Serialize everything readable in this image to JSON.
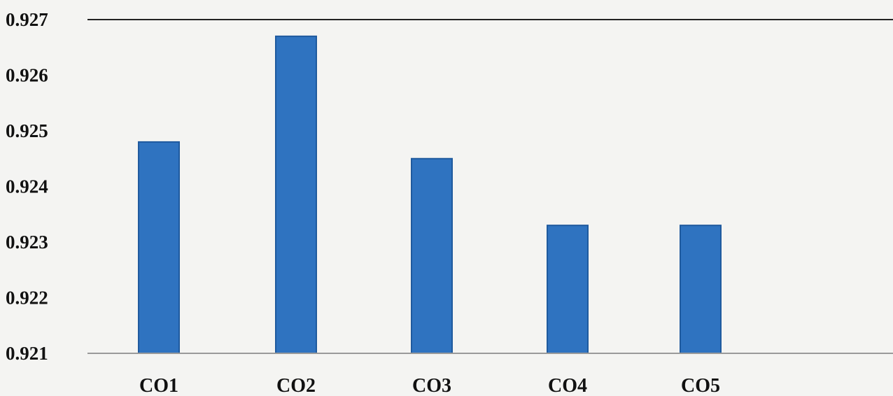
{
  "chart_data": {
    "type": "bar",
    "categories": [
      "CO1",
      "CO2",
      "CO3",
      "CO4",
      "CO5"
    ],
    "values": [
      0.9248,
      0.9267,
      0.9245,
      0.9233,
      0.9233
    ],
    "ylim": [
      0.921,
      0.927
    ],
    "yticks": [
      "0.921",
      "0.922",
      "0.923",
      "0.924",
      "0.925",
      "0.926",
      "0.927"
    ],
    "title": "",
    "xlabel": "",
    "ylabel": "",
    "grid": false,
    "legend": "none",
    "colors": {
      "bar": "#2f73c0",
      "bar_edge": "#1f5a9e",
      "axis": "#222222",
      "text": "#111111"
    }
  }
}
